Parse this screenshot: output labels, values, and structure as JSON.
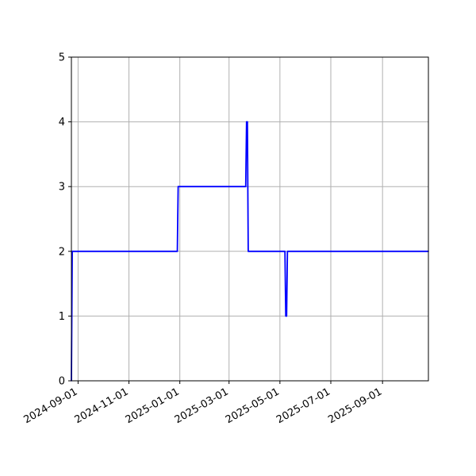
{
  "chart_data": {
    "type": "line",
    "title": "",
    "xlabel": "",
    "ylabel": "",
    "grid": true,
    "x_axis": {
      "kind": "date",
      "min": "2024-08-24",
      "max": "2025-10-26",
      "ticks": [
        "2024-09-01",
        "2024-11-01",
        "2025-01-01",
        "2025-03-01",
        "2025-05-01",
        "2025-07-01",
        "2025-09-01"
      ]
    },
    "y_axis": {
      "min": 0,
      "max": 5,
      "ticks": [
        0,
        1,
        2,
        3,
        4,
        5
      ]
    },
    "series": [
      {
        "color": "#0000ff",
        "points": [
          [
            "2024-08-24",
            0
          ],
          [
            "2024-08-25",
            2
          ],
          [
            "2024-12-29",
            2
          ],
          [
            "2024-12-30",
            3
          ],
          [
            "2025-03-21",
            3
          ],
          [
            "2025-03-22",
            4
          ],
          [
            "2025-03-23",
            4
          ],
          [
            "2025-03-24",
            2
          ],
          [
            "2025-05-07",
            2
          ],
          [
            "2025-05-08",
            1
          ],
          [
            "2025-05-09",
            1
          ],
          [
            "2025-05-10",
            2
          ],
          [
            "2025-10-26",
            2
          ]
        ]
      }
    ]
  }
}
